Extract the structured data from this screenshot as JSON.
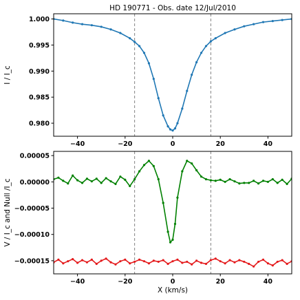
{
  "chart_data": [
    {
      "type": "line",
      "title": "HD 190771 -  Obs. date  12/Jul/2010",
      "xlabel": "",
      "ylabel": "I / I_c",
      "xlim": [
        -50,
        50
      ],
      "ylim": [
        0.9775,
        1.001
      ],
      "xticks": [
        -40,
        -20,
        0,
        20,
        40
      ],
      "xtick_labels": [
        "−40",
        "−20",
        "0",
        "20",
        "40"
      ],
      "yticks": [
        0.98,
        0.985,
        0.99,
        0.995,
        1.0
      ],
      "ytick_labels": [
        "0.980",
        "0.985",
        "0.990",
        "0.995",
        "1.000"
      ],
      "vlines": [
        -16,
        16
      ],
      "series": [
        {
          "color": "#1f77b4",
          "x": [
            -50,
            -46,
            -42,
            -38,
            -34,
            -30,
            -26,
            -22,
            -18,
            -16,
            -14,
            -12,
            -10,
            -8,
            -6,
            -4,
            -2,
            -1,
            0,
            1,
            2,
            4,
            6,
            8,
            10,
            12,
            14,
            16,
            18,
            22,
            26,
            30,
            34,
            38,
            42,
            46,
            50
          ],
          "y": [
            1.0,
            0.9997,
            0.9993,
            0.999,
            0.9988,
            0.9985,
            0.998,
            0.9973,
            0.9963,
            0.9956,
            0.9948,
            0.9935,
            0.9915,
            0.9885,
            0.9848,
            0.9815,
            0.9794,
            0.9788,
            0.9786,
            0.979,
            0.98,
            0.9828,
            0.9862,
            0.9893,
            0.9917,
            0.9935,
            0.9948,
            0.9957,
            0.9963,
            0.9973,
            0.998,
            0.9986,
            0.999,
            0.9994,
            0.9996,
            0.9998,
            1.0
          ]
        }
      ]
    },
    {
      "type": "line",
      "title": "",
      "xlabel": "X  (km/s)",
      "ylabel": "V / I_c  and  Null /I_c",
      "xlim": [
        -50,
        50
      ],
      "ylim": [
        -0.000175,
        5.8e-05
      ],
      "xticks": [
        -40,
        -20,
        0,
        20,
        40
      ],
      "xtick_labels": [
        "−40",
        "−20",
        "0",
        "20",
        "40"
      ],
      "yticks": [
        5e-05,
        0.0,
        -5e-05,
        -0.0001,
        -0.00015
      ],
      "ytick_labels": [
        "0.00005",
        "0.00000",
        "−0.00005",
        "−0.00010",
        "−0.00015"
      ],
      "vlines": [
        -16,
        16
      ],
      "series": [
        {
          "color": "#008000",
          "x": [
            -50,
            -48,
            -46,
            -44,
            -42,
            -40,
            -38,
            -36,
            -34,
            -32,
            -30,
            -28,
            -26,
            -24,
            -22,
            -20,
            -18,
            -16,
            -14,
            -12,
            -10,
            -8,
            -6,
            -4,
            -2,
            -1,
            0,
            1,
            2,
            4,
            6,
            8,
            10,
            12,
            14,
            16,
            18,
            20,
            22,
            24,
            26,
            28,
            30,
            32,
            34,
            36,
            38,
            40,
            42,
            44,
            46,
            48,
            50
          ],
          "y": [
            5e-06,
            8e-06,
            2e-06,
            -3e-06,
            1.2e-05,
            3e-06,
            -2e-06,
            6e-06,
            1e-06,
            6e-06,
            -2e-06,
            7e-06,
            1e-06,
            -4e-06,
            1e-05,
            4e-06,
            -8e-06,
            5e-06,
            2e-05,
            3.2e-05,
            4e-05,
            3e-05,
            5e-06,
            -4e-05,
            -9.5e-05,
            -0.000115,
            -0.00011,
            -8e-05,
            -3e-05,
            2e-05,
            4e-05,
            3.5e-05,
            2.2e-05,
            1e-05,
            5e-06,
            3e-06,
            2e-06,
            4e-06,
            0.0,
            5e-06,
            1e-06,
            -3e-06,
            -2e-06,
            -2e-06,
            2e-06,
            -3e-06,
            2e-06,
            0.0,
            5e-06,
            -2e-06,
            4e-06,
            -4e-06,
            6e-06
          ]
        },
        {
          "color": "#e41a1c",
          "x": [
            -50,
            -48,
            -46,
            -44,
            -42,
            -40,
            -38,
            -36,
            -34,
            -32,
            -30,
            -28,
            -26,
            -24,
            -22,
            -20,
            -18,
            -16,
            -14,
            -12,
            -10,
            -8,
            -6,
            -4,
            -2,
            0,
            2,
            4,
            6,
            8,
            10,
            12,
            14,
            16,
            18,
            20,
            22,
            24,
            26,
            28,
            30,
            32,
            34,
            36,
            38,
            40,
            42,
            44,
            46,
            48,
            50
          ],
          "y": [
            -0.000153,
            -0.000148,
            -0.000155,
            -0.000151,
            -0.000147,
            -0.000154,
            -0.000149,
            -0.000153,
            -0.000148,
            -0.000156,
            -0.00015,
            -0.000146,
            -0.000153,
            -0.000157,
            -0.000151,
            -0.000148,
            -0.000155,
            -0.000152,
            -0.000148,
            -0.000151,
            -0.000155,
            -0.00015,
            -0.000152,
            -0.000149,
            -0.000156,
            -0.000151,
            -0.000148,
            -0.000154,
            -0.000152,
            -0.000157,
            -0.00015,
            -0.000154,
            -0.000156,
            -0.000149,
            -0.000146,
            -0.000151,
            -0.000155,
            -0.000149,
            -0.000153,
            -0.000149,
            -0.000152,
            -0.000156,
            -0.000161,
            -0.000152,
            -0.000148,
            -0.000155,
            -0.000159,
            -0.000152,
            -0.000149,
            -0.000156,
            -0.000151
          ]
        }
      ]
    }
  ]
}
